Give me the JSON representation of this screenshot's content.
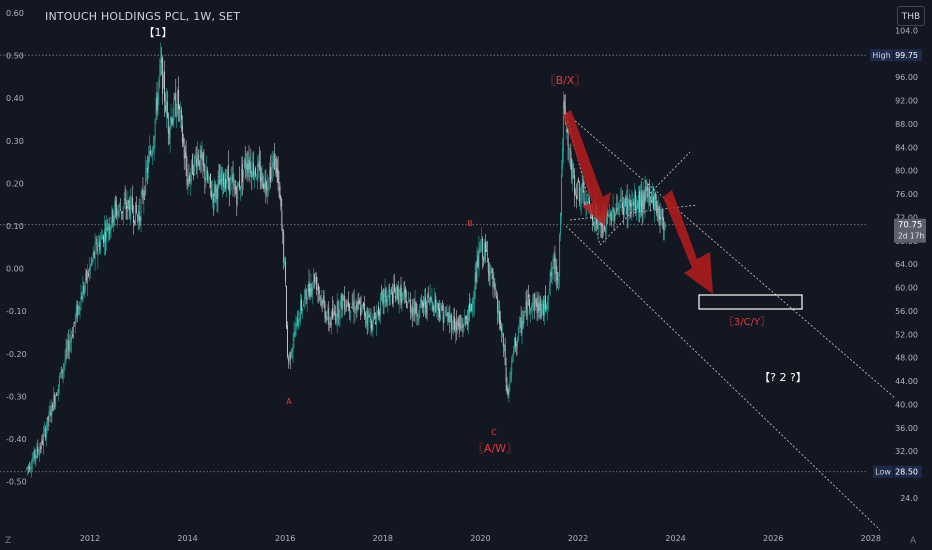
{
  "title": "INTOUCH HOLDINGS PCL, 1W, SET",
  "currency": "THB",
  "axis_corner_left": "Z",
  "axis_corner_right": "A",
  "left_axis_ticks": [
    "0.60",
    "0.50",
    "0.40",
    "0.30",
    "0.20",
    "0.10",
    "0.00",
    "-0.10",
    "-0.20",
    "-0.30",
    "-0.40",
    "-0.50"
  ],
  "right_axis_ticks": [
    "104.0",
    "100.0",
    "96.00",
    "92.00",
    "88.00",
    "84.00",
    "80.00",
    "76.00",
    "72.00",
    "68.00",
    "64.00",
    "60.00",
    "56.00",
    "52.00",
    "48.00",
    "44.00",
    "40.00",
    "36.00",
    "32.00",
    "28.00",
    "24.0"
  ],
  "x_axis_ticks": [
    "2012",
    "2014",
    "2016",
    "2018",
    "2020",
    "2022",
    "2024",
    "2026",
    "2028"
  ],
  "price_badges": {
    "high_label": "High",
    "high_value": "99.75",
    "last_value": "70.75",
    "last_countdown": "2d 17h",
    "low_label": "Low",
    "low_value": "28.50"
  },
  "wave_labels": {
    "w1": "【1】",
    "a": "A",
    "b": "B",
    "c": "C",
    "aw": "〖A/W〗",
    "bx": "〖B/X〗",
    "cy": "〖3/C/Y〗",
    "w2": "【? 2 ?】"
  },
  "colors": {
    "background": "#131722",
    "candle_up": "#26a69a",
    "candle_down": "#c4c8cc",
    "wave_red": "#e53935",
    "arrow_red": "#b71c1c",
    "grid_dots": "#787b86",
    "badge_blue": "#1e2a4a"
  },
  "chart_data": {
    "type": "candlestick",
    "symbol": "INTOUCH HOLDINGS PCL",
    "interval": "1W",
    "exchange": "SET",
    "currency": "THB",
    "all_time_high": 99.75,
    "low": 28.5,
    "last": 70.75,
    "ylim": [
      22,
      106
    ],
    "x_range": [
      2010.5,
      2028.5
    ],
    "price_path": [
      [
        2010.7,
        29
      ],
      [
        2011.0,
        33
      ],
      [
        2011.3,
        42
      ],
      [
        2011.5,
        48
      ],
      [
        2011.8,
        58
      ],
      [
        2012.1,
        66
      ],
      [
        2012.5,
        73
      ],
      [
        2012.8,
        74
      ],
      [
        2013.0,
        72
      ],
      [
        2013.3,
        86
      ],
      [
        2013.45,
        98
      ],
      [
        2013.6,
        88
      ],
      [
        2013.8,
        92
      ],
      [
        2014.0,
        78
      ],
      [
        2014.2,
        83
      ],
      [
        2014.5,
        76
      ],
      [
        2014.8,
        79
      ],
      [
        2015.0,
        76
      ],
      [
        2015.2,
        82
      ],
      [
        2015.4,
        80
      ],
      [
        2015.6,
        78
      ],
      [
        2015.8,
        82
      ],
      [
        2015.9,
        74
      ],
      [
        2016.0,
        62
      ],
      [
        2016.05,
        47
      ],
      [
        2016.3,
        56
      ],
      [
        2016.6,
        62
      ],
      [
        2016.9,
        54
      ],
      [
        2017.2,
        58
      ],
      [
        2017.6,
        56
      ],
      [
        2017.8,
        54
      ],
      [
        2018.0,
        58
      ],
      [
        2018.3,
        59
      ],
      [
        2018.7,
        56
      ],
      [
        2019.0,
        58
      ],
      [
        2019.3,
        55
      ],
      [
        2019.6,
        53
      ],
      [
        2019.8,
        56
      ],
      [
        2020.0,
        67
      ],
      [
        2020.15,
        65
      ],
      [
        2020.4,
        54
      ],
      [
        2020.5,
        48
      ],
      [
        2020.55,
        41
      ],
      [
        2020.7,
        50
      ],
      [
        2021.0,
        58
      ],
      [
        2021.3,
        56
      ],
      [
        2021.5,
        64
      ],
      [
        2021.6,
        62
      ],
      [
        2021.7,
        90
      ],
      [
        2021.9,
        78
      ],
      [
        2022.2,
        74
      ],
      [
        2022.5,
        70
      ],
      [
        2022.8,
        74
      ],
      [
        2023.2,
        74
      ],
      [
        2023.5,
        76
      ],
      [
        2023.7,
        72
      ],
      [
        2023.8,
        70.75
      ]
    ],
    "horizontal_levels": [
      99.75,
      70.75,
      28.5
    ],
    "target_zone": {
      "x0": 2024.3,
      "x1": 2026.6,
      "y0": 58.5,
      "y1": 61
    },
    "annotations": [
      "【1】",
      "A",
      "B",
      "C",
      "〖A/W〗",
      "〖B/X〗",
      "〖3/C/Y〗",
      "【? 2 ?】"
    ]
  }
}
